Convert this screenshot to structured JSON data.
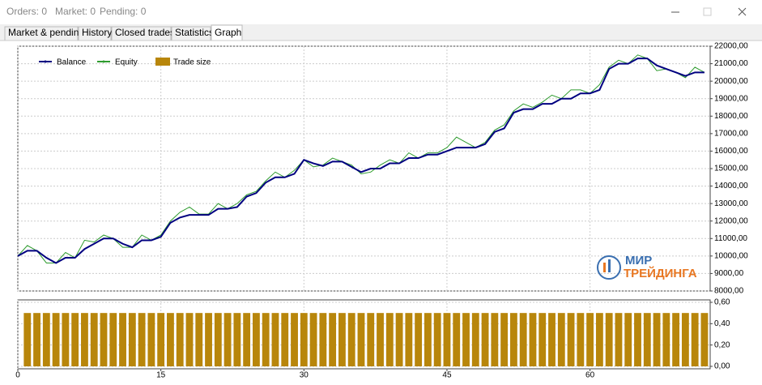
{
  "window": {
    "counters": [
      "Orders: 0",
      "Market: 0",
      "Pending: 0"
    ],
    "tabs": [
      "Market & pending",
      "History",
      "Closed trades",
      "Statistics",
      "Graph"
    ],
    "active_tab": 4,
    "watermark": [
      "МИР",
      "ТРЕЙДИНГА"
    ]
  },
  "chart_data": [
    {
      "type": "line",
      "x": [
        0,
        1,
        2,
        3,
        4,
        5,
        6,
        7,
        8,
        9,
        10,
        11,
        12,
        13,
        14,
        15,
        16,
        17,
        18,
        19,
        20,
        21,
        22,
        23,
        24,
        25,
        26,
        27,
        28,
        29,
        30,
        31,
        32,
        33,
        34,
        35,
        36,
        37,
        38,
        39,
        40,
        41,
        42,
        43,
        44,
        45,
        46,
        47,
        48,
        49,
        50,
        51,
        52,
        53,
        54,
        55,
        56,
        57,
        58,
        59,
        60,
        61,
        62,
        63,
        64,
        65,
        66,
        67,
        68,
        69,
        70,
        71,
        72
      ],
      "series": [
        {
          "name": "Balance",
          "color": "#000080",
          "width": 2,
          "values": [
            10000,
            10300,
            10300,
            9900,
            9600,
            9900,
            9900,
            10400,
            10700,
            11000,
            11000,
            10700,
            10500,
            10900,
            10900,
            11100,
            11900,
            12200,
            12350,
            12350,
            12350,
            12700,
            12700,
            12800,
            13400,
            13600,
            14200,
            14500,
            14500,
            14700,
            15500,
            15300,
            15150,
            15400,
            15400,
            15100,
            14800,
            15000,
            15000,
            15300,
            15300,
            15600,
            15600,
            15800,
            15800,
            16000,
            16200,
            16200,
            16200,
            16400,
            17100,
            17300,
            18200,
            18400,
            18400,
            18700,
            18700,
            19000,
            19000,
            19300,
            19300,
            19500,
            20700,
            21000,
            21000,
            21300,
            21300,
            20900,
            20700,
            20500,
            20300,
            20500,
            20500
          ]
        },
        {
          "name": "Equity",
          "color": "#2e9b2e",
          "width": 1,
          "values": [
            10000,
            10600,
            10300,
            9600,
            9600,
            10200,
            9900,
            10900,
            10800,
            11200,
            11000,
            10500,
            10500,
            11200,
            10900,
            11200,
            12000,
            12500,
            12800,
            12400,
            12400,
            13000,
            12700,
            13000,
            13500,
            13700,
            14300,
            14800,
            14500,
            14900,
            15500,
            15100,
            15200,
            15600,
            15400,
            15200,
            14700,
            14800,
            15200,
            15500,
            15300,
            15900,
            15600,
            15900,
            15900,
            16200,
            16800,
            16500,
            16200,
            16500,
            17200,
            17500,
            18300,
            18700,
            18500,
            18800,
            19200,
            19000,
            19500,
            19500,
            19300,
            19800,
            20800,
            21200,
            21000,
            21500,
            21300,
            20600,
            20700,
            20500,
            20200,
            20800,
            20500
          ]
        }
      ],
      "xlim": [
        0,
        72.6
      ],
      "xticks": [
        0,
        15,
        30,
        45,
        60
      ],
      "ylim": [
        8000,
        22000
      ],
      "yticks": [
        {
          "value": 22000,
          "label": "22000,00"
        },
        {
          "value": 21000,
          "label": "21000,00"
        },
        {
          "value": 20000,
          "label": "20000,00"
        },
        {
          "value": 19000,
          "label": "19000,00"
        },
        {
          "value": 18000,
          "label": "18000,00"
        },
        {
          "value": 17000,
          "label": "17000,00"
        },
        {
          "value": 16000,
          "label": "16000,00"
        },
        {
          "value": 15000,
          "label": "15000,00"
        },
        {
          "value": 14000,
          "label": "14000,00"
        },
        {
          "value": 13000,
          "label": "13000,00"
        },
        {
          "value": 12000,
          "label": "12000,00"
        },
        {
          "value": 11000,
          "label": "11000,00"
        },
        {
          "value": 10000,
          "label": "10000,00"
        },
        {
          "value": 9000,
          "label": "9000,00"
        },
        {
          "value": 8000,
          "label": "8000,00"
        }
      ],
      "grid": true
    },
    {
      "type": "bar",
      "x": [
        1,
        2,
        3,
        4,
        5,
        6,
        7,
        8,
        9,
        10,
        11,
        12,
        13,
        14,
        15,
        16,
        17,
        18,
        19,
        20,
        21,
        22,
        23,
        24,
        25,
        26,
        27,
        28,
        29,
        30,
        31,
        32,
        33,
        34,
        35,
        36,
        37,
        38,
        39,
        40,
        41,
        42,
        43,
        44,
        45,
        46,
        47,
        48,
        49,
        50,
        51,
        52,
        53,
        54,
        55,
        56,
        57,
        58,
        59,
        60,
        61,
        62,
        63,
        64,
        65,
        66,
        67,
        68,
        69,
        70,
        71,
        72
      ],
      "series": [
        {
          "name": "Trade size",
          "color": "#b8860b",
          "values": [
            0.5,
            0.5,
            0.5,
            0.5,
            0.5,
            0.5,
            0.5,
            0.5,
            0.5,
            0.5,
            0.5,
            0.5,
            0.5,
            0.5,
            0.5,
            0.5,
            0.5,
            0.5,
            0.5,
            0.5,
            0.5,
            0.5,
            0.5,
            0.5,
            0.5,
            0.5,
            0.5,
            0.5,
            0.5,
            0.5,
            0.5,
            0.5,
            0.5,
            0.5,
            0.5,
            0.5,
            0.5,
            0.5,
            0.5,
            0.5,
            0.5,
            0.5,
            0.5,
            0.5,
            0.5,
            0.5,
            0.5,
            0.5,
            0.5,
            0.5,
            0.5,
            0.5,
            0.5,
            0.5,
            0.5,
            0.5,
            0.5,
            0.5,
            0.5,
            0.5,
            0.5,
            0.5,
            0.5,
            0.5,
            0.5,
            0.5,
            0.5,
            0.5,
            0.5,
            0.5,
            0.5,
            0.5
          ]
        }
      ],
      "xlim": [
        0,
        72.6
      ],
      "xticks": [
        0,
        15,
        30,
        45,
        60
      ],
      "ylim": [
        0,
        0.6
      ],
      "yticks": [
        {
          "value": 0.6,
          "label": "0,60"
        },
        {
          "value": 0.4,
          "label": "0,40"
        },
        {
          "value": 0.2,
          "label": "0,20"
        },
        {
          "value": 0,
          "label": "0,00"
        }
      ],
      "grid": true
    }
  ]
}
